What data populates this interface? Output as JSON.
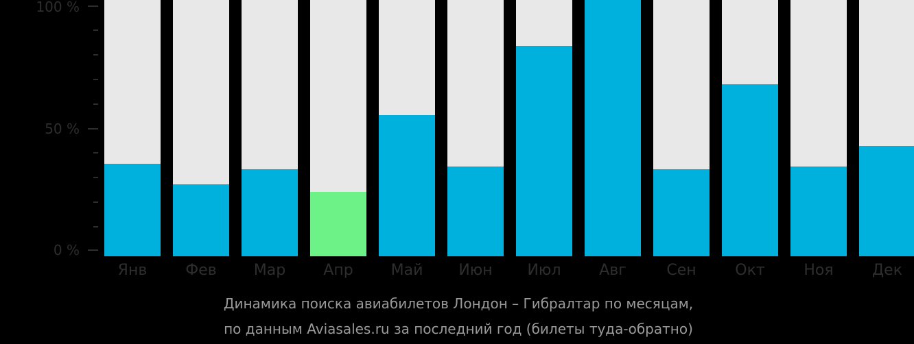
{
  "chart_data": {
    "type": "bar",
    "title": "Динамика поиска авиабилетов Лондон – Гибралтар по месяцам, по данным Aviasales.ru за последний год (билеты туда-обратно)",
    "xlabel": "",
    "ylabel": "",
    "ylim": [
      0,
      100
    ],
    "y_ticks": [
      "0 %",
      "50 %",
      "100 %"
    ],
    "categories": [
      "Янв",
      "Фев",
      "Мар",
      "Апр",
      "Май",
      "Июн",
      "Июл",
      "Авг",
      "Сен",
      "Окт",
      "Ноя",
      "Дек"
    ],
    "values": [
      36,
      28,
      34,
      25,
      55,
      35,
      82,
      100,
      34,
      67,
      35,
      43
    ],
    "highlight_index": 3,
    "grid": false,
    "legend": null
  },
  "axis": {
    "y_labels": [
      "100 %",
      "50 %",
      "0 %"
    ]
  },
  "caption": {
    "line1": "Динамика поиска авиабилетов Лондон – Гибралтар по месяцам,",
    "line2": "по данным Aviasales.ru за последний год (билеты туда-обратно)"
  },
  "colors": {
    "background": "#000000",
    "bar_track": "#e8e8e8",
    "bar_fill": "#00b0dd",
    "bar_fill_current": "#6cf287",
    "axis_text": "#2e2e2e",
    "caption_text": "#9a9a9a"
  }
}
